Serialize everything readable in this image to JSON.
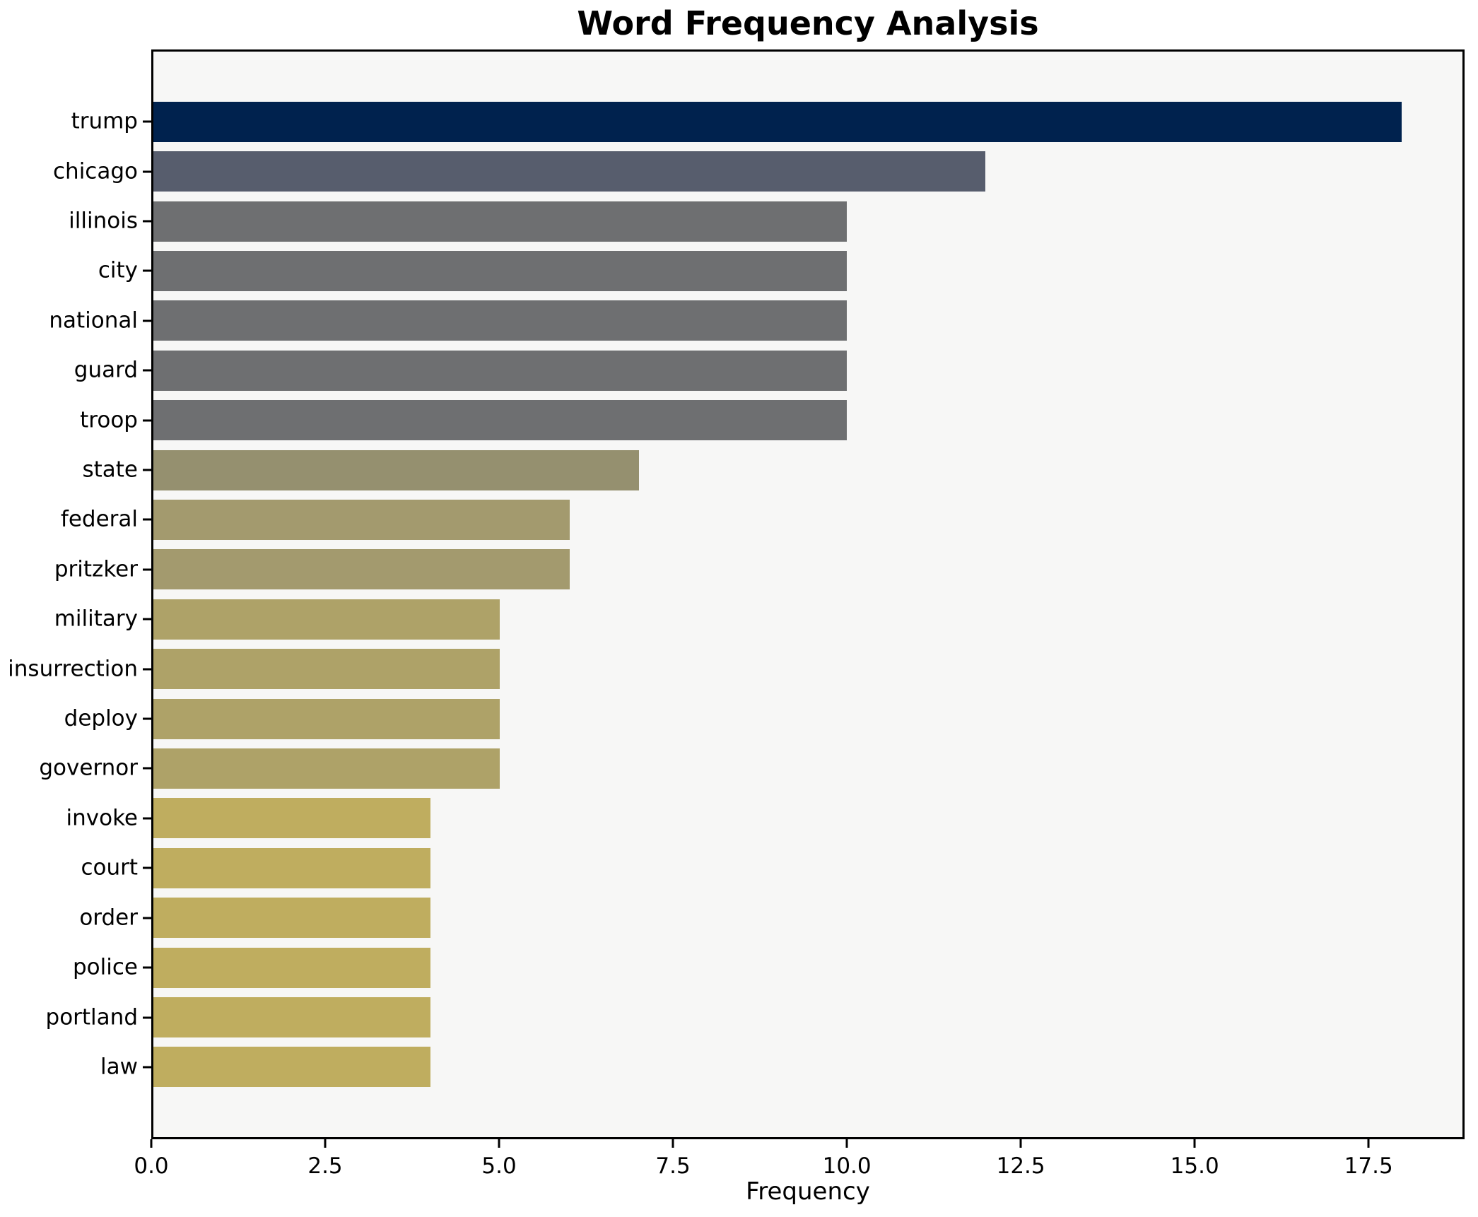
{
  "figure": {
    "title": "Word Frequency Analysis",
    "xlabel": "Frequency"
  },
  "chart_data": {
    "type": "bar",
    "orientation": "horizontal",
    "title": "Word Frequency Analysis",
    "xlabel": "Frequency",
    "ylabel": "",
    "categories": [
      "trump",
      "chicago",
      "illinois",
      "city",
      "national",
      "guard",
      "troop",
      "state",
      "federal",
      "pritzker",
      "military",
      "insurrection",
      "deploy",
      "governor",
      "invoke",
      "court",
      "order",
      "police",
      "portland",
      "law"
    ],
    "values": [
      18,
      12,
      10,
      10,
      10,
      10,
      10,
      7,
      6,
      6,
      5,
      5,
      5,
      5,
      4,
      4,
      4,
      4,
      4,
      4
    ],
    "bar_colors": [
      "#00224e",
      "#575d6d",
      "#6e6f71",
      "#6e6f71",
      "#6e6f71",
      "#6e6f71",
      "#6e6f71",
      "#95906f",
      "#a39a6e",
      "#a39a6e",
      "#aea268",
      "#aea268",
      "#aea268",
      "#aea268",
      "#bfad5f",
      "#bfad5f",
      "#bfad5f",
      "#bfad5f",
      "#bfad5f",
      "#bfad5f"
    ],
    "xlim": [
      0,
      18.88
    ],
    "xticks": [
      0,
      2.5,
      5,
      7.5,
      10,
      12.5,
      15,
      17.5
    ],
    "xtick_labels": [
      "0.0",
      "2.5",
      "5.0",
      "7.5",
      "10.0",
      "12.5",
      "15.0",
      "17.5"
    ],
    "grid": false,
    "legend": null,
    "bar_height_fraction": 0.8,
    "plot_background": "#f7f7f6",
    "figure_background": "#ffffff",
    "spine_color": "#000000"
  }
}
